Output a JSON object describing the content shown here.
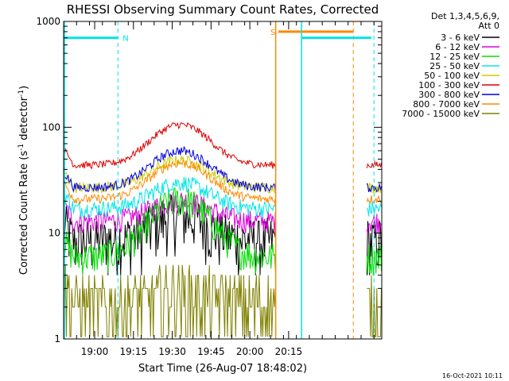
{
  "chart_data": {
    "type": "line",
    "title": "RHESSI Observing Summary Count Rates, Corrected",
    "xlabel": "Start Time (26-Aug-07 18:48:02)",
    "ylabel": "Corrected Count Rate (s",
    "ylabel_sup1": "-1",
    "ylabel_mid": " detector",
    "ylabel_sup2": "-1",
    "ylabel_end": ")",
    "x_ticks": [
      {
        "minutes": 12,
        "label": "19:00"
      },
      {
        "minutes": 27,
        "label": "19:15"
      },
      {
        "minutes": 42,
        "label": "19:30"
      },
      {
        "minutes": 57,
        "label": "19:45"
      },
      {
        "minutes": 72,
        "label": "20:00"
      },
      {
        "minutes": 87,
        "label": "20:15"
      }
    ],
    "xlim_minutes": [
      0,
      123
    ],
    "y_scale": "log",
    "ylim": [
      1,
      1000
    ],
    "y_ticks": [
      {
        "value": 1,
        "label": "1"
      },
      {
        "value": 10,
        "label": "10"
      },
      {
        "value": 100,
        "label": "100"
      },
      {
        "value": 1000,
        "label": "1000"
      }
    ],
    "legend_header": [
      "Det 1,3,4,5,6,9,",
      "Att 0"
    ],
    "series": [
      {
        "name": "3 - 6 keV",
        "color": "#000000",
        "base": 8.5,
        "amp": 6.5,
        "noise": 0.6,
        "quantized": true
      },
      {
        "name": "6 - 12 keV",
        "color": "#dd00dd",
        "base": 13.0,
        "amp": 7.5,
        "noise": 0.25
      },
      {
        "name": "12 - 25 keV",
        "color": "#00dd00",
        "base": 6.0,
        "amp": 15.0,
        "noise": 0.35
      },
      {
        "name": "25 - 50 keV",
        "color": "#00e5e5",
        "base": 17.0,
        "amp": 13.0,
        "noise": 0.18
      },
      {
        "name": "50 - 100 keV",
        "color": "#cccc00",
        "base": 27.0,
        "amp": 22.0,
        "noise": 0.12
      },
      {
        "name": "100 - 300 keV",
        "color": "#dd0000",
        "base": 44.0,
        "amp": 62.0,
        "noise": 0.08
      },
      {
        "name": "300 - 800 keV",
        "color": "#0000dd",
        "base": 27.0,
        "amp": 33.0,
        "noise": 0.1
      },
      {
        "name": "800 - 7000 keV",
        "color": "#ff8800",
        "base": 21.0,
        "amp": 25.0,
        "noise": 0.1
      },
      {
        "name": "7000 - 15000 keV",
        "color": "#808000",
        "base": 2.2,
        "amp": 0.6,
        "noise": 0.8,
        "quantized": true
      }
    ],
    "annotations": [
      {
        "label": "N",
        "color": "#00e5e5",
        "segment_minutes": [
          0,
          21
        ],
        "y": 700,
        "dashed_at_minutes": 21
      },
      {
        "label": "S",
        "color": "#ff8800",
        "segment_minutes": [
          83,
          112
        ],
        "y": 800,
        "dashed_at_minutes": 112
      }
    ],
    "gaps_minutes": [
      [
        82,
        117
      ]
    ],
    "timestamp": "16-Oct-2021 10:11"
  },
  "colors": {
    "background": "#ffffff",
    "axis": "#000000"
  }
}
